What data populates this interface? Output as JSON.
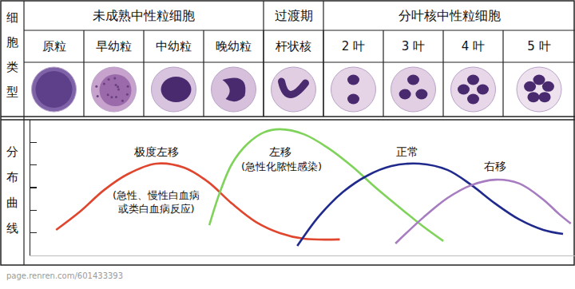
{
  "table": {
    "row_label": "细胞类型",
    "groups": [
      {
        "label": "未成熟中性粒细胞",
        "cells": [
          "原粒",
          "早幼粒",
          "中幼粒",
          "晚幼粒"
        ]
      },
      {
        "label": "过渡期",
        "cells": [
          "杆状核"
        ]
      },
      {
        "label": "分叶核中性粒细胞",
        "cells": [
          "2 叶",
          "3 叶",
          "4 叶",
          "5 叶"
        ]
      }
    ]
  },
  "chart_data": {
    "type": "line",
    "ylabel": "分布曲线",
    "xlim": [
      -0.4,
      8.7
    ],
    "xticks": [],
    "ylim": [
      0,
      6
    ],
    "yticks": [
      1,
      2,
      3,
      4,
      5
    ],
    "tick_labels": false,
    "grid": false,
    "series": [
      {
        "name": "极度左移",
        "note": "(急性、慢性白血病\n或类白血病反应)",
        "color": "#e0452e",
        "x": [
          0.03,
          0.43,
          0.83,
          1.23,
          1.7,
          2.17,
          2.57,
          2.97,
          3.37,
          3.77,
          4.17,
          4.77
        ],
        "values": [
          1.13,
          1.94,
          2.89,
          3.6,
          4.06,
          3.88,
          3.25,
          2.29,
          1.48,
          0.99,
          0.74,
          0.71
        ]
      },
      {
        "name": "左移",
        "note": "(急性化脓性感染)",
        "color": "#7fd35a",
        "x": [
          2.59,
          2.77,
          2.97,
          3.23,
          3.5,
          3.77,
          4.17,
          4.57,
          4.97,
          5.37,
          5.77,
          6.17,
          6.5
        ],
        "values": [
          1.34,
          2.82,
          4.06,
          4.94,
          5.44,
          5.58,
          5.36,
          4.76,
          3.95,
          3.0,
          2.12,
          1.27,
          0.64
        ]
      },
      {
        "name": "正常",
        "color": "#1f2a8c",
        "x": [
          4.06,
          4.43,
          4.83,
          5.23,
          5.63,
          6.1,
          6.57,
          6.97,
          7.37,
          7.77,
          8.17,
          8.5
        ],
        "values": [
          0.42,
          1.76,
          2.82,
          3.53,
          3.95,
          4.06,
          3.78,
          3.11,
          2.29,
          1.59,
          1.13,
          0.95
        ]
      },
      {
        "name": "右移",
        "color": "#a77cc0",
        "x": [
          5.7,
          6.17,
          6.57,
          6.97,
          7.37,
          7.77,
          8.17,
          8.43,
          8.63
        ],
        "values": [
          0.53,
          1.69,
          2.54,
          3.11,
          3.35,
          3.18,
          2.47,
          1.84,
          1.41
        ]
      }
    ]
  },
  "watermark": "page.renren.com/601433393"
}
